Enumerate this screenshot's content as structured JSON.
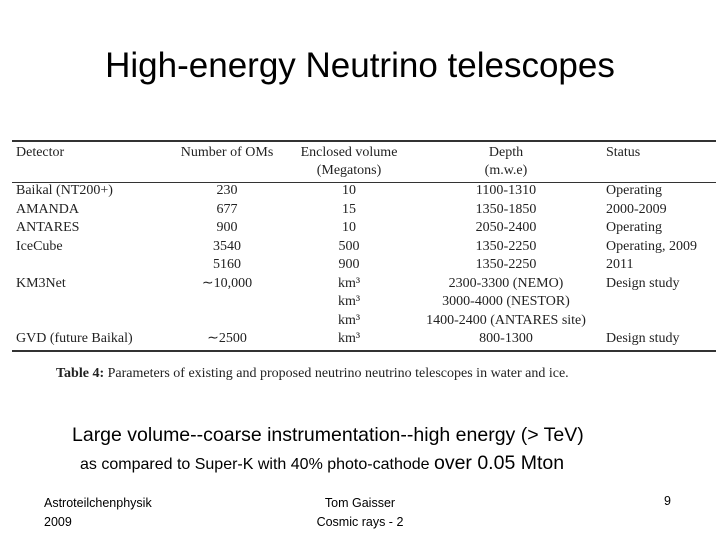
{
  "slide": {
    "title": "High-energy Neutrino telescopes",
    "line1": "Large volume--coarse instrumentation--high energy (> TeV)",
    "line2_small": "as compared to Super-K with 40% photo-cathode ",
    "line2_big": "over 0.05 Mton"
  },
  "table": {
    "headers": {
      "detector": "Detector",
      "oms": "Number of OMs",
      "volume_1": "Enclosed volume",
      "volume_2": "(Megatons)",
      "depth_1": "Depth",
      "depth_2": "(m.w.e)",
      "status": "Status"
    },
    "rows": [
      {
        "detector": "Baikal (NT200+)",
        "oms": "230",
        "volume": "10",
        "depth": "1100-1310",
        "status": "Operating"
      },
      {
        "detector": "AMANDA",
        "oms": "677",
        "volume": "15",
        "depth": "1350-1850",
        "status": "2000-2009"
      },
      {
        "detector": "ANTARES",
        "oms": "900",
        "volume": "10",
        "depth": "2050-2400",
        "status": "Operating"
      },
      {
        "detector": "IceCube",
        "oms": "3540",
        "volume": "500",
        "depth": "1350-2250",
        "status": "Operating, 2009"
      },
      {
        "detector": "",
        "oms": "5160",
        "volume": "900",
        "depth": "1350-2250",
        "status": "2011"
      },
      {
        "detector": "KM3Net",
        "oms": "∼10,000",
        "volume": "km³",
        "depth": "2300-3300 (NEMO)",
        "status": "Design study"
      },
      {
        "detector": "",
        "oms": "",
        "volume": "km³",
        "depth": "3000-4000 (NESTOR)",
        "status": ""
      },
      {
        "detector": "",
        "oms": "",
        "volume": "km³",
        "depth": "1400-2400 (ANTARES site)",
        "status": ""
      },
      {
        "detector": "GVD (future Baikal)",
        "oms": "∼2500",
        "volume": "km³",
        "depth": "800-1300",
        "status": "Design study"
      }
    ],
    "caption_label": "Table 4:",
    "caption_text": " Parameters of existing and proposed neutrino neutrino telescopes in water and ice."
  },
  "footer": {
    "left_1": "Astroteilchenphysik",
    "left_2": "2009",
    "center_1": "Tom Gaisser",
    "center_2": "Cosmic rays - 2",
    "page": "9"
  }
}
